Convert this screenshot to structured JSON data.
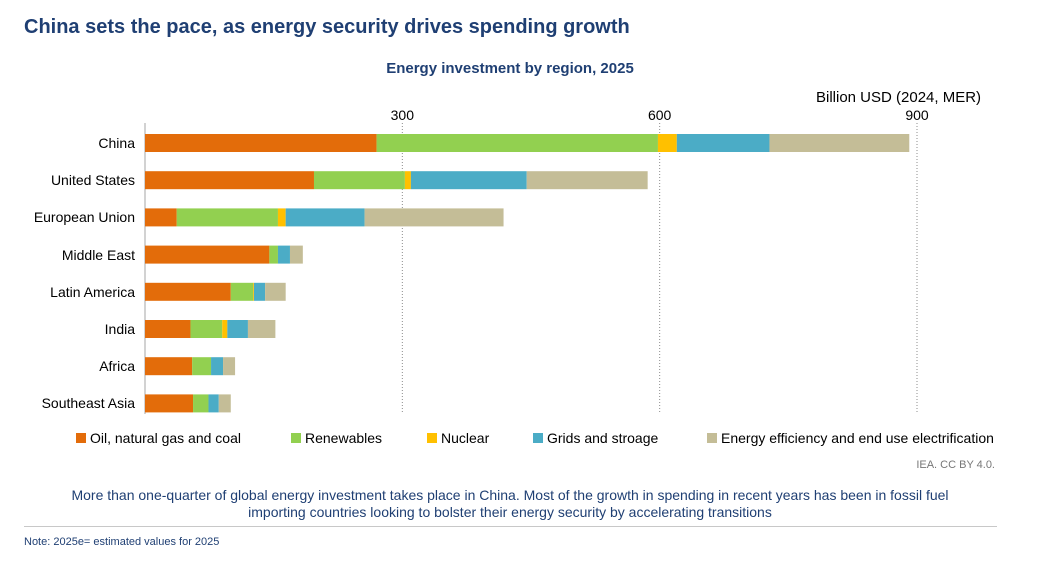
{
  "title": "China sets the pace, as energy security drives spending growth",
  "chart_data": {
    "type": "bar",
    "orientation": "horizontal",
    "stacked": true,
    "title": "Energy investment by region, 2025",
    "xlabel": "Billion USD (2024, MER)",
    "xlim": [
      0,
      900
    ],
    "xticks": [
      300,
      600,
      900
    ],
    "grid": "vertical-dotted",
    "legend_position": "bottom",
    "categories": [
      "China",
      "United States",
      "European Union",
      "Middle East",
      "Latin America",
      "India",
      "Africa",
      "Southeast Asia"
    ],
    "series": [
      {
        "name": "Oil, natural gas and coal",
        "color": "#e36c0a",
        "values": [
          270,
          197,
          37,
          145,
          100,
          53,
          55,
          56
        ]
      },
      {
        "name": "Renewables",
        "color": "#92d050",
        "values": [
          328,
          106,
          118,
          10,
          26,
          37,
          22,
          18
        ]
      },
      {
        "name": "Nuclear",
        "color": "#ffc000",
        "values": [
          22,
          7,
          9,
          0,
          1,
          6,
          0,
          0
        ]
      },
      {
        "name": "Grids and stroage",
        "color": "#4bacc6",
        "values": [
          108,
          135,
          92,
          14,
          13,
          24,
          14,
          12
        ]
      },
      {
        "name": "Energy efficiency and end use electrification",
        "color": "#c4bd97",
        "values": [
          163,
          141,
          162,
          15,
          24,
          32,
          14,
          14
        ]
      }
    ]
  },
  "source": "IEA. CC BY 4.0.",
  "caption_line1": "More than one-quarter of global energy investment takes place in China. Most of the growth in spending in recent years has been in fossil fuel",
  "caption_line2": "importing countries looking to bolster their energy security by accelerating transitions",
  "note": "Note: 2025e= estimated values for 2025"
}
